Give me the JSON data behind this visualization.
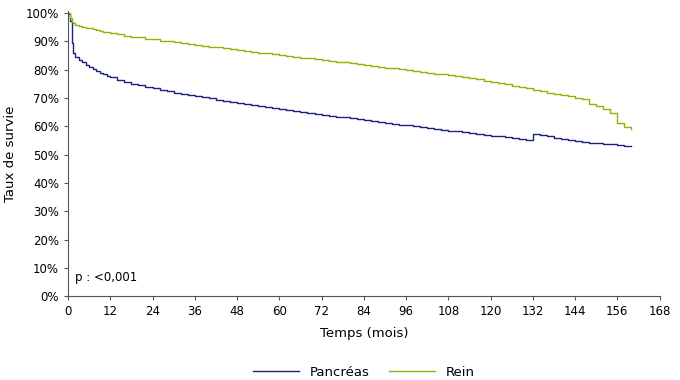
{
  "title": "",
  "xlabel": "Temps (mois)",
  "ylabel": "Taux de survie",
  "xlim": [
    0,
    168
  ],
  "ylim": [
    0,
    1.005
  ],
  "xticks": [
    0,
    12,
    24,
    36,
    48,
    60,
    72,
    84,
    96,
    108,
    120,
    132,
    144,
    156,
    168
  ],
  "yticks": [
    0.0,
    0.1,
    0.2,
    0.3,
    0.4,
    0.5,
    0.6,
    0.7,
    0.8,
    0.9,
    1.0
  ],
  "pancreas_color": "#1a237e",
  "rein_color": "#8db600",
  "background_color": "#ffffff",
  "pvalue_text": "p : <0,001",
  "legend_pancreas": "Pancréas",
  "legend_rein": "Rein",
  "pancreas_x": [
    0,
    0.3,
    0.5,
    1,
    1.5,
    2,
    3,
    4,
    5,
    6,
    7,
    8,
    9,
    10,
    11,
    12,
    14,
    16,
    18,
    20,
    22,
    24,
    26,
    28,
    30,
    32,
    34,
    36,
    38,
    40,
    42,
    44,
    46,
    48,
    50,
    52,
    54,
    56,
    58,
    60,
    62,
    64,
    66,
    68,
    70,
    72,
    74,
    76,
    78,
    80,
    82,
    84,
    86,
    88,
    90,
    92,
    94,
    96,
    98,
    100,
    102,
    104,
    106,
    108,
    110,
    112,
    114,
    116,
    118,
    120,
    122,
    124,
    126,
    128,
    130,
    132,
    134,
    136,
    138,
    140,
    142,
    144,
    146,
    148,
    150,
    152,
    154,
    156,
    158,
    160
  ],
  "pancreas_y": [
    1.0,
    0.995,
    0.97,
    0.895,
    0.86,
    0.845,
    0.833,
    0.825,
    0.816,
    0.808,
    0.801,
    0.795,
    0.789,
    0.783,
    0.778,
    0.773,
    0.764,
    0.757,
    0.75,
    0.744,
    0.739,
    0.734,
    0.729,
    0.724,
    0.719,
    0.714,
    0.71,
    0.706,
    0.702,
    0.698,
    0.694,
    0.69,
    0.686,
    0.682,
    0.678,
    0.675,
    0.671,
    0.668,
    0.664,
    0.661,
    0.657,
    0.654,
    0.65,
    0.647,
    0.644,
    0.641,
    0.637,
    0.634,
    0.631,
    0.628,
    0.624,
    0.621,
    0.618,
    0.615,
    0.612,
    0.609,
    0.606,
    0.603,
    0.6,
    0.597,
    0.594,
    0.591,
    0.588,
    0.585,
    0.582,
    0.579,
    0.576,
    0.573,
    0.57,
    0.567,
    0.564,
    0.561,
    0.558,
    0.555,
    0.553,
    0.572,
    0.568,
    0.564,
    0.56,
    0.556,
    0.552,
    0.548,
    0.545,
    0.542,
    0.54,
    0.538,
    0.536,
    0.534,
    0.532,
    0.53
  ],
  "rein_x": [
    0,
    0.3,
    0.5,
    1,
    1.5,
    2,
    3,
    4,
    5,
    6,
    7,
    8,
    9,
    10,
    11,
    12,
    14,
    16,
    18,
    20,
    22,
    24,
    26,
    28,
    30,
    32,
    34,
    36,
    38,
    40,
    42,
    44,
    46,
    48,
    50,
    52,
    54,
    56,
    58,
    60,
    62,
    64,
    66,
    68,
    70,
    72,
    74,
    76,
    78,
    80,
    82,
    84,
    86,
    88,
    90,
    92,
    94,
    96,
    98,
    100,
    102,
    104,
    106,
    108,
    110,
    112,
    114,
    116,
    118,
    120,
    122,
    124,
    126,
    128,
    130,
    132,
    134,
    136,
    138,
    140,
    142,
    144,
    146,
    148,
    150,
    152,
    154,
    156,
    158,
    160
  ],
  "rein_y": [
    1.0,
    0.998,
    0.98,
    0.968,
    0.963,
    0.958,
    0.954,
    0.951,
    0.948,
    0.945,
    0.942,
    0.939,
    0.936,
    0.933,
    0.931,
    0.928,
    0.924,
    0.92,
    0.916,
    0.913,
    0.909,
    0.906,
    0.902,
    0.899,
    0.896,
    0.893,
    0.89,
    0.887,
    0.884,
    0.881,
    0.878,
    0.875,
    0.872,
    0.869,
    0.866,
    0.863,
    0.86,
    0.857,
    0.854,
    0.851,
    0.848,
    0.845,
    0.842,
    0.839,
    0.836,
    0.834,
    0.831,
    0.828,
    0.825,
    0.822,
    0.819,
    0.816,
    0.813,
    0.81,
    0.807,
    0.804,
    0.801,
    0.798,
    0.795,
    0.792,
    0.789,
    0.786,
    0.783,
    0.78,
    0.776,
    0.772,
    0.769,
    0.765,
    0.761,
    0.757,
    0.752,
    0.748,
    0.743,
    0.738,
    0.734,
    0.729,
    0.724,
    0.719,
    0.714,
    0.71,
    0.705,
    0.7,
    0.695,
    0.678,
    0.67,
    0.66,
    0.648,
    0.61,
    0.598,
    0.59
  ]
}
